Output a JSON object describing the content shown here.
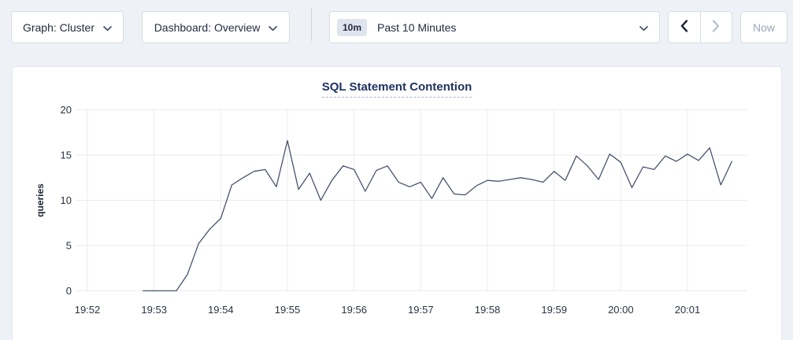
{
  "page": {
    "background": "#eef1f6",
    "panel_background": "#ffffff",
    "accent_navy": "#1f3361"
  },
  "toolbar": {
    "graph_selector": {
      "label": "Graph: Cluster",
      "icon": "chevron-down"
    },
    "dashboard_selector": {
      "label": "Dashboard: Overview",
      "icon": "chevron-down"
    },
    "time_picker": {
      "range_badge": "10m",
      "label": "Past 10 Minutes",
      "icon": "chevron-down"
    },
    "prev_button": {
      "icon": "chevron-left",
      "enabled": true
    },
    "next_button": {
      "icon": "chevron-right",
      "enabled": false
    },
    "now_button": {
      "label": "Now",
      "enabled": false
    }
  },
  "chart": {
    "title": "SQL Statement Contention"
  },
  "chart_data": {
    "type": "line",
    "title": "SQL Statement Contention",
    "xlabel": "",
    "ylabel": "queries",
    "ylim": [
      0,
      20
    ],
    "yticks": [
      0,
      5,
      10,
      15,
      20
    ],
    "xticks": [
      "19:52",
      "19:53",
      "19:54",
      "19:55",
      "19:56",
      "19:57",
      "19:58",
      "19:59",
      "20:00",
      "20:01"
    ],
    "x_axis_start": "19:52:00",
    "x_axis_end": "20:01:53",
    "grid": true,
    "legend_position": "none",
    "line_color": "#49536e",
    "grid_color": "#ebebee",
    "series": [
      {
        "name": "queries",
        "times": [
          "19:52:50",
          "19:53:00",
          "19:53:10",
          "19:53:20",
          "19:53:30",
          "19:53:40",
          "19:53:50",
          "19:54:00",
          "19:54:10",
          "19:54:20",
          "19:54:30",
          "19:54:40",
          "19:54:50",
          "19:55:00",
          "19:55:10",
          "19:55:20",
          "19:55:30",
          "19:55:40",
          "19:55:50",
          "19:56:00",
          "19:56:10",
          "19:56:20",
          "19:56:30",
          "19:56:40",
          "19:56:50",
          "19:57:00",
          "19:57:10",
          "19:57:20",
          "19:57:30",
          "19:57:40",
          "19:57:50",
          "19:58:00",
          "19:58:10",
          "19:58:20",
          "19:58:30",
          "19:58:40",
          "19:58:50",
          "19:59:00",
          "19:59:10",
          "19:59:20",
          "19:59:30",
          "19:59:40",
          "19:59:50",
          "20:00:00",
          "20:00:10",
          "20:00:20",
          "20:00:30",
          "20:00:40",
          "20:00:50",
          "20:01:00",
          "20:01:10",
          "20:01:20",
          "20:01:30",
          "20:01:40"
        ],
        "values": [
          0,
          0,
          0,
          0,
          1.8,
          5.2,
          6.8,
          8.0,
          11.7,
          12.5,
          13.2,
          13.4,
          11.5,
          16.6,
          11.2,
          13.0,
          10.0,
          12.2,
          13.8,
          13.4,
          11.0,
          13.3,
          13.8,
          12.0,
          11.5,
          12.0,
          10.2,
          12.5,
          10.7,
          10.6,
          11.6,
          12.2,
          12.1,
          12.3,
          12.5,
          12.3,
          12.0,
          13.2,
          12.2,
          14.9,
          13.8,
          12.3,
          15.1,
          14.2,
          11.4,
          13.7,
          13.4,
          14.9,
          14.3,
          15.1,
          14.4,
          15.8,
          11.7,
          14.3
        ]
      }
    ]
  }
}
